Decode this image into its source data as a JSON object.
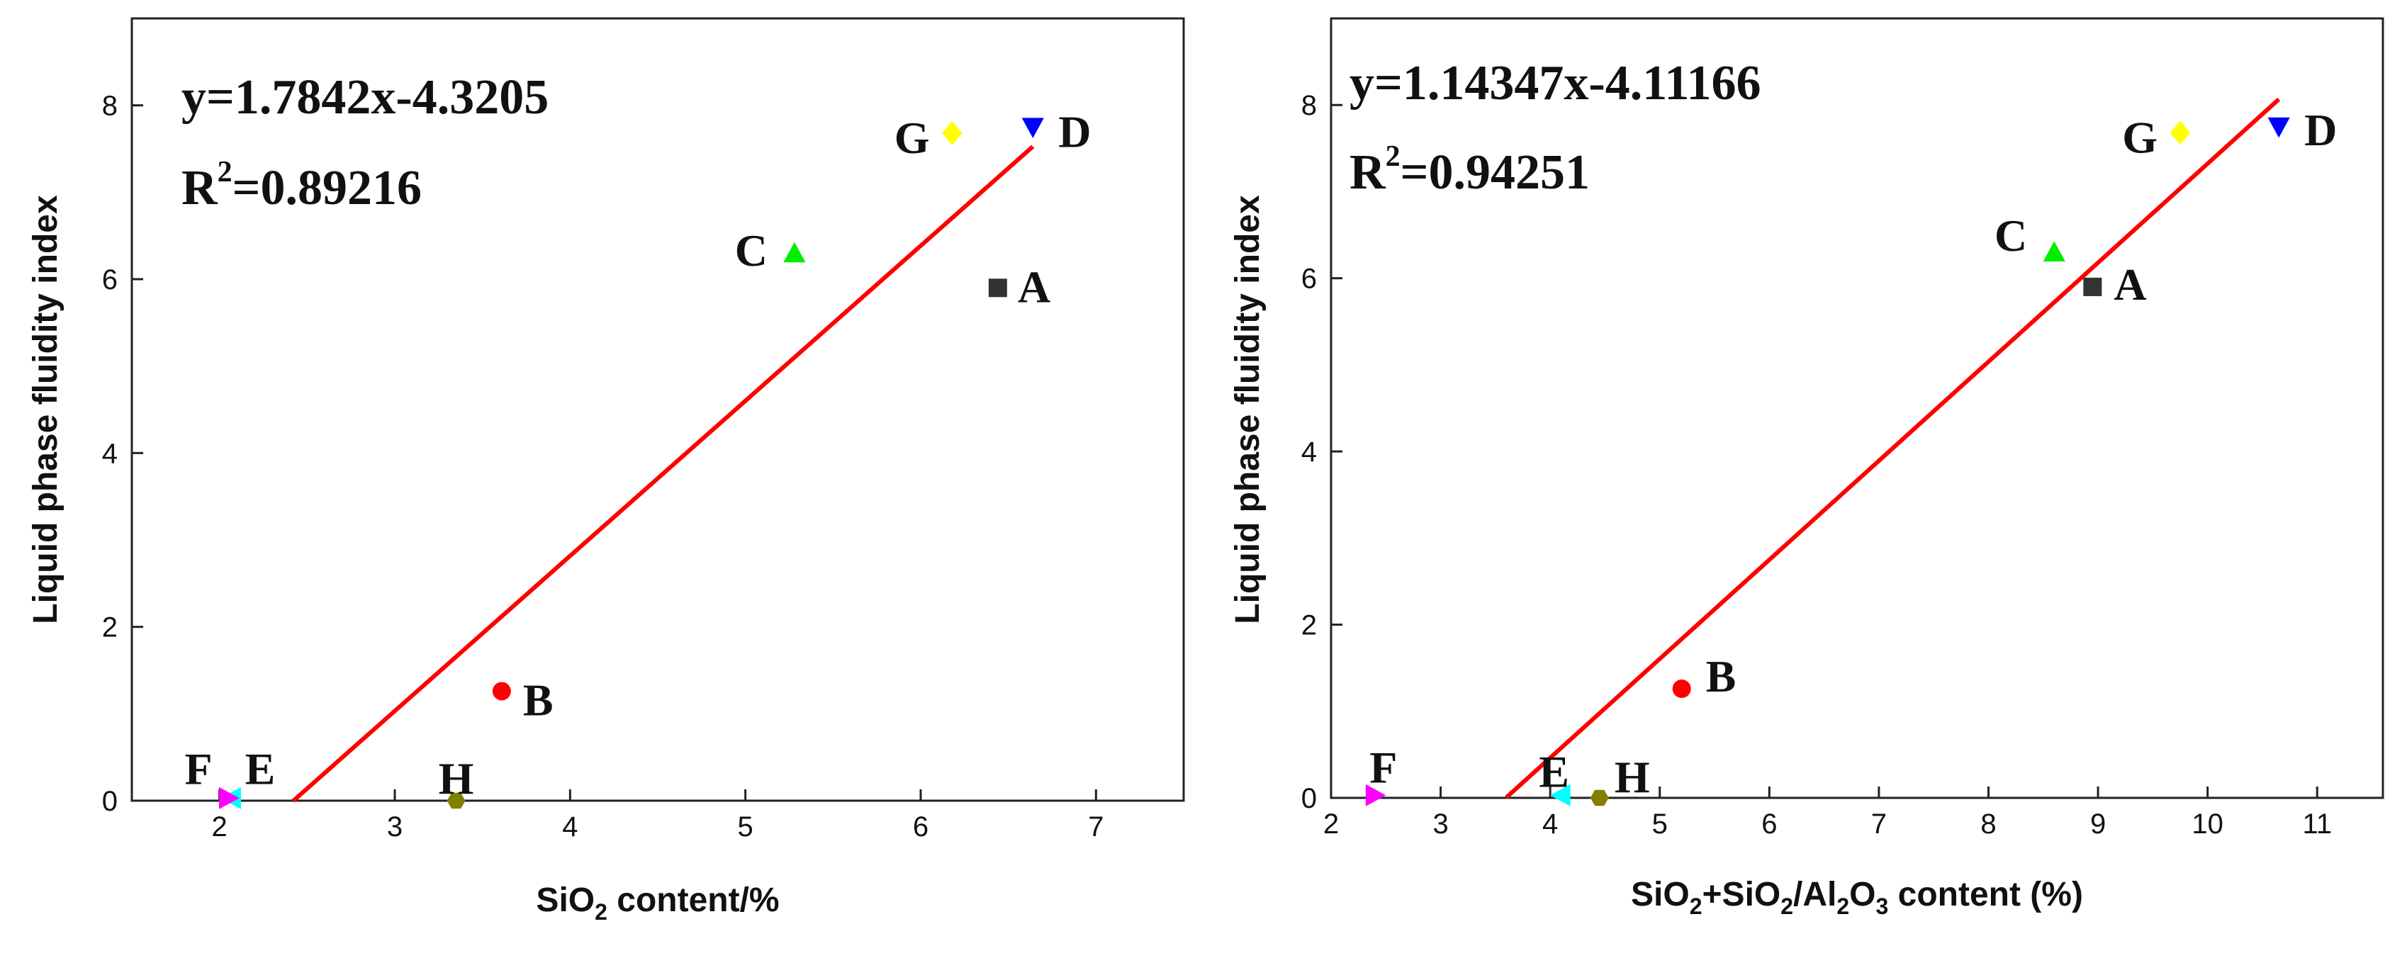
{
  "chart_data": [
    {
      "type": "scatter",
      "title": "",
      "xlabel": {
        "pre": "SiO",
        "sub1": "2",
        "post": " content/%"
      },
      "ylabel": "Liquid phase fluidity index",
      "xlim": [
        1.5,
        7.5
      ],
      "ylim": [
        0,
        9
      ],
      "xticks": [
        2,
        3,
        4,
        5,
        6,
        7
      ],
      "yticks": [
        0,
        2,
        4,
        6,
        8
      ],
      "grid": false,
      "equation": "y=1.7842x-4.3205",
      "r2_label": "R",
      "r2_sup": "2",
      "r2_value": "=0.89216",
      "fit": {
        "slope": 1.7842,
        "intercept": -4.3205,
        "x_range": [
          2.42,
          6.64
        ]
      },
      "points": [
        {
          "name": "A",
          "x": 6.44,
          "y": 5.9,
          "marker": "square",
          "color": "#333333"
        },
        {
          "name": "B",
          "x": 3.61,
          "y": 1.26,
          "marker": "circle",
          "color": "#ff0000"
        },
        {
          "name": "C",
          "x": 5.28,
          "y": 6.3,
          "marker": "triangle-up",
          "color": "#00ee00"
        },
        {
          "name": "D",
          "x": 6.64,
          "y": 7.75,
          "marker": "triangle-down",
          "color": "#0000ff"
        },
        {
          "name": "E",
          "x": 2.07,
          "y": 0.03,
          "marker": "triangle-left",
          "color": "#00ffff"
        },
        {
          "name": "F",
          "x": 2.05,
          "y": 0.03,
          "marker": "triangle-right",
          "color": "#ff00ff"
        },
        {
          "name": "G",
          "x": 6.18,
          "y": 7.68,
          "marker": "diamond",
          "color": "#ffff00"
        },
        {
          "name": "H",
          "x": 3.35,
          "y": 0.0,
          "marker": "hexagon",
          "color": "#808000"
        }
      ]
    },
    {
      "type": "scatter",
      "title": "",
      "xlabel": {
        "pre": "SiO",
        "sub1": "2",
        "mid1": "+SiO",
        "sub2": "2",
        "mid2": "/Al",
        "sub3": "2",
        "mid3": "O",
        "sub4": "3",
        "post": " content (%)"
      },
      "ylabel": "Liquid phase fluidity index",
      "xlim": [
        2,
        11.6
      ],
      "ylim": [
        0,
        9
      ],
      "xticks": [
        2,
        3,
        4,
        5,
        6,
        7,
        8,
        9,
        10,
        11
      ],
      "yticks": [
        0,
        2,
        4,
        6,
        8
      ],
      "grid": false,
      "equation": "y=1.14347x-4.11166",
      "r2_label": "R",
      "r2_sup": "2",
      "r2_value": "=0.94251",
      "fit": {
        "slope": 1.14347,
        "intercept": -4.11166,
        "x_range": [
          3.6,
          10.65
        ]
      },
      "points": [
        {
          "name": "A",
          "x": 8.95,
          "y": 5.9,
          "marker": "square",
          "color": "#333333"
        },
        {
          "name": "B",
          "x": 5.2,
          "y": 1.26,
          "marker": "circle",
          "color": "#ff0000"
        },
        {
          "name": "C",
          "x": 8.6,
          "y": 6.3,
          "marker": "triangle-up",
          "color": "#00ee00"
        },
        {
          "name": "D",
          "x": 10.65,
          "y": 7.75,
          "marker": "triangle-down",
          "color": "#0000ff"
        },
        {
          "name": "E",
          "x": 4.1,
          "y": 0.03,
          "marker": "triangle-left",
          "color": "#00ffff"
        },
        {
          "name": "F",
          "x": 2.4,
          "y": 0.03,
          "marker": "triangle-right",
          "color": "#ff00ff"
        },
        {
          "name": "G",
          "x": 9.75,
          "y": 7.68,
          "marker": "diamond",
          "color": "#ffff00"
        },
        {
          "name": "H",
          "x": 4.45,
          "y": 0.0,
          "marker": "hexagon",
          "color": "#808000"
        }
      ]
    }
  ]
}
